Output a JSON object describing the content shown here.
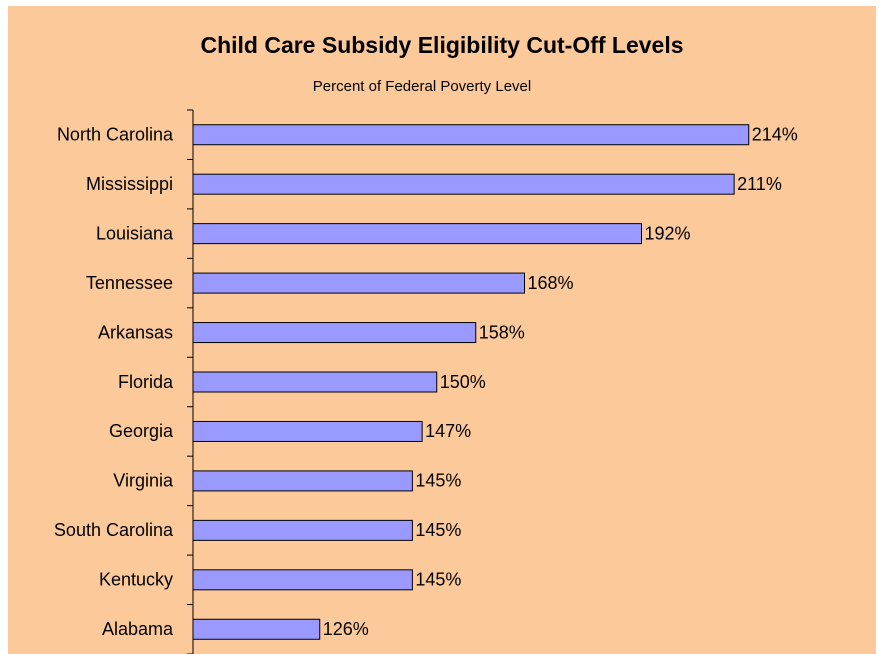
{
  "chart_data": {
    "type": "bar",
    "orientation": "horizontal",
    "title": "Child Care Subsidy Eligibility Cut-Off Levels",
    "subtitle": "Percent of Federal Poverty Level",
    "categories": [
      "North Carolina",
      "Mississippi",
      "Louisiana",
      "Tennessee",
      "Arkansas",
      "Florida",
      "Georgia",
      "Virginia",
      "South Carolina",
      "Kentucky",
      "Alabama"
    ],
    "values": [
      214,
      211,
      192,
      168,
      158,
      150,
      147,
      145,
      145,
      145,
      126
    ],
    "value_labels": [
      "214%",
      "211%",
      "192%",
      "168%",
      "158%",
      "150%",
      "147%",
      "145%",
      "145%",
      "145%",
      "126%"
    ],
    "color": "#9999ff",
    "xlim": [
      100,
      220
    ]
  }
}
